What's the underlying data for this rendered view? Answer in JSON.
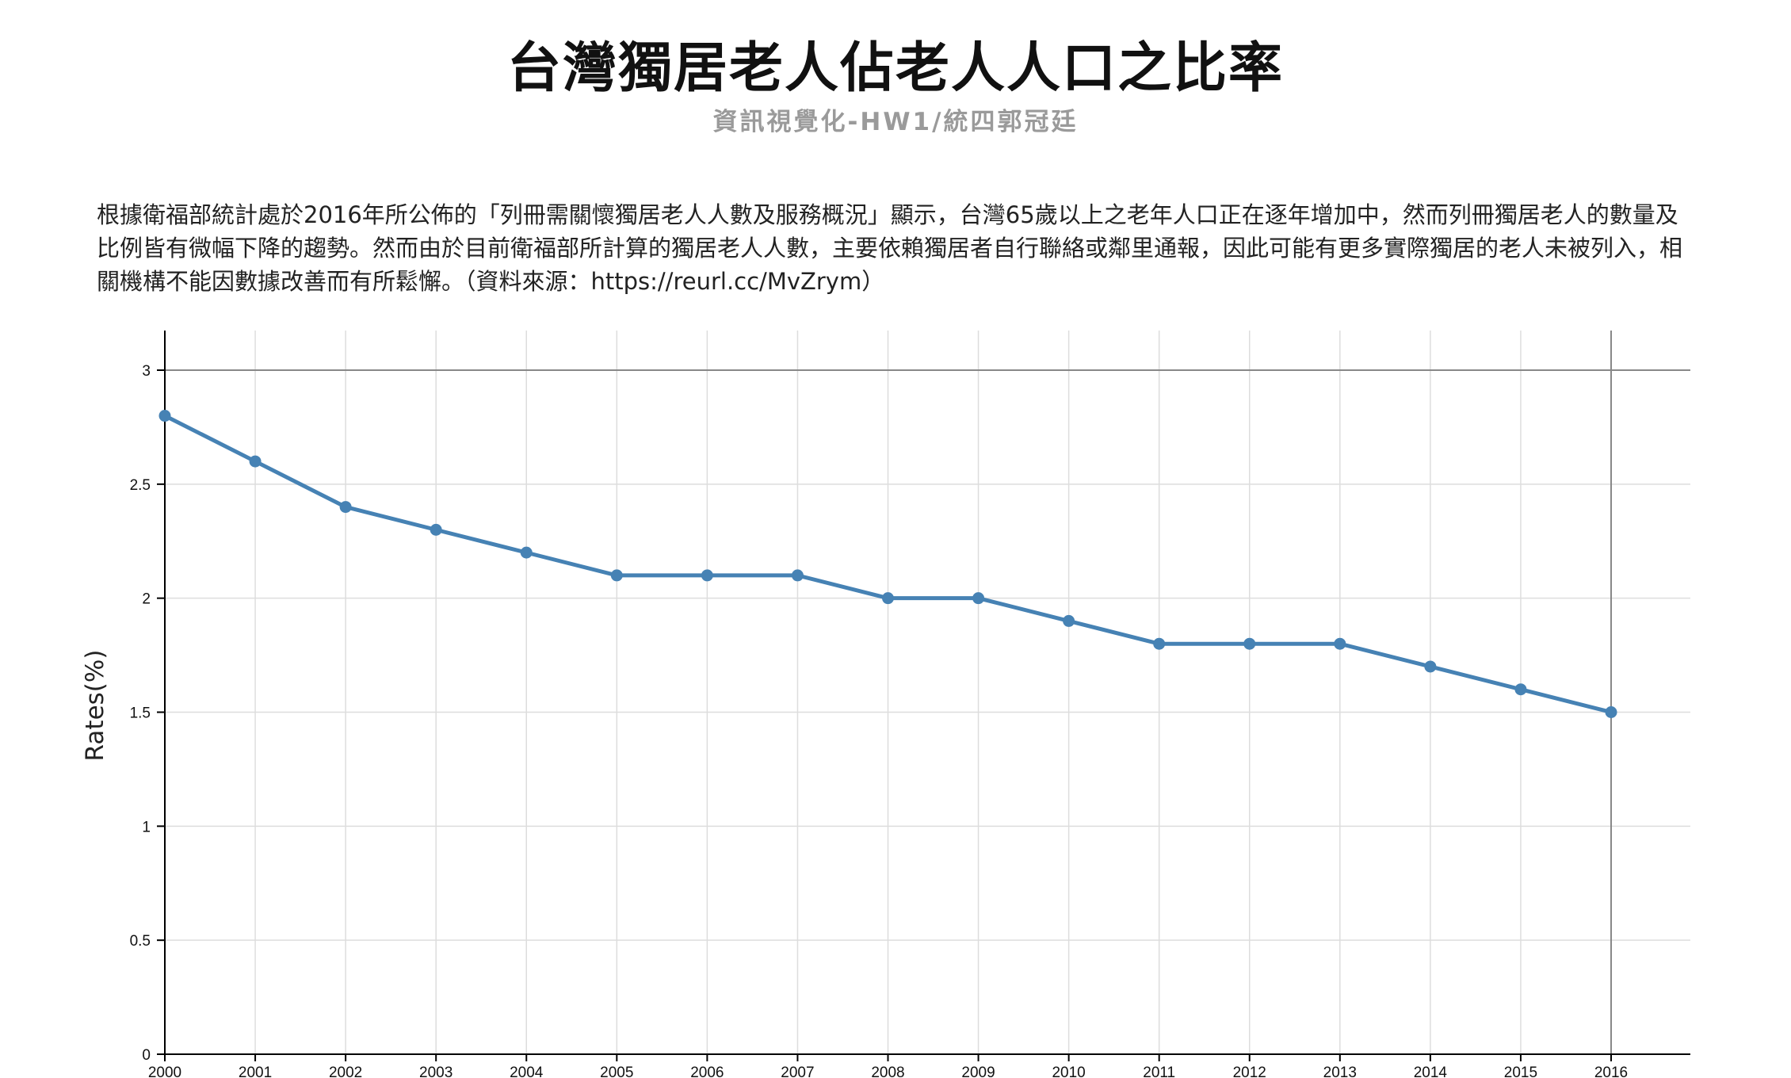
{
  "header": {
    "title": "台灣獨居老人佔老人人口之比率",
    "subtitle": "資訊視覺化-HW1/統四郭冠廷"
  },
  "description": "根據衛福部統計處於2016年所公佈的「列冊需關懷獨居老人人數及服務概況」顯示，台灣65歲以上之老年人口正在逐年增加中，然而列冊獨居老人的數量及比例皆有微幅下降的趨勢。然而由於目前衛福部所計算的獨居老人人數，主要依賴獨居者自行聯絡或鄰里通報，因此可能有更多實際獨居的老人未被列入，相關機構不能因數據改善而有所鬆懈。（資料來源：https://reurl.cc/MvZrym）",
  "chart_data": {
    "type": "line",
    "title": "台灣獨居老人佔老人人口之比率",
    "xlabel": "",
    "ylabel": "Rates(%)",
    "x": [
      2000,
      2001,
      2002,
      2003,
      2004,
      2005,
      2006,
      2007,
      2008,
      2009,
      2010,
      2011,
      2012,
      2013,
      2014,
      2015,
      2016
    ],
    "series": [
      {
        "values": [
          2.8,
          2.6,
          2.4,
          2.3,
          2.2,
          2.1,
          2.1,
          2.1,
          2.0,
          2.0,
          1.9,
          1.8,
          1.8,
          1.8,
          1.7,
          1.6,
          1.5
        ]
      }
    ],
    "ylim": [
      0,
      3
    ],
    "yticks": [
      0,
      0.5,
      1,
      1.5,
      2,
      2.5,
      3
    ],
    "ytick_labels": [
      "0",
      "0.5",
      "1",
      "1.5",
      "2",
      "2.5",
      "3"
    ],
    "grid": true,
    "colors": {
      "line": "#4682b4",
      "grid": "#dddddd",
      "axis": "#000000",
      "ref": "#888888"
    }
  }
}
